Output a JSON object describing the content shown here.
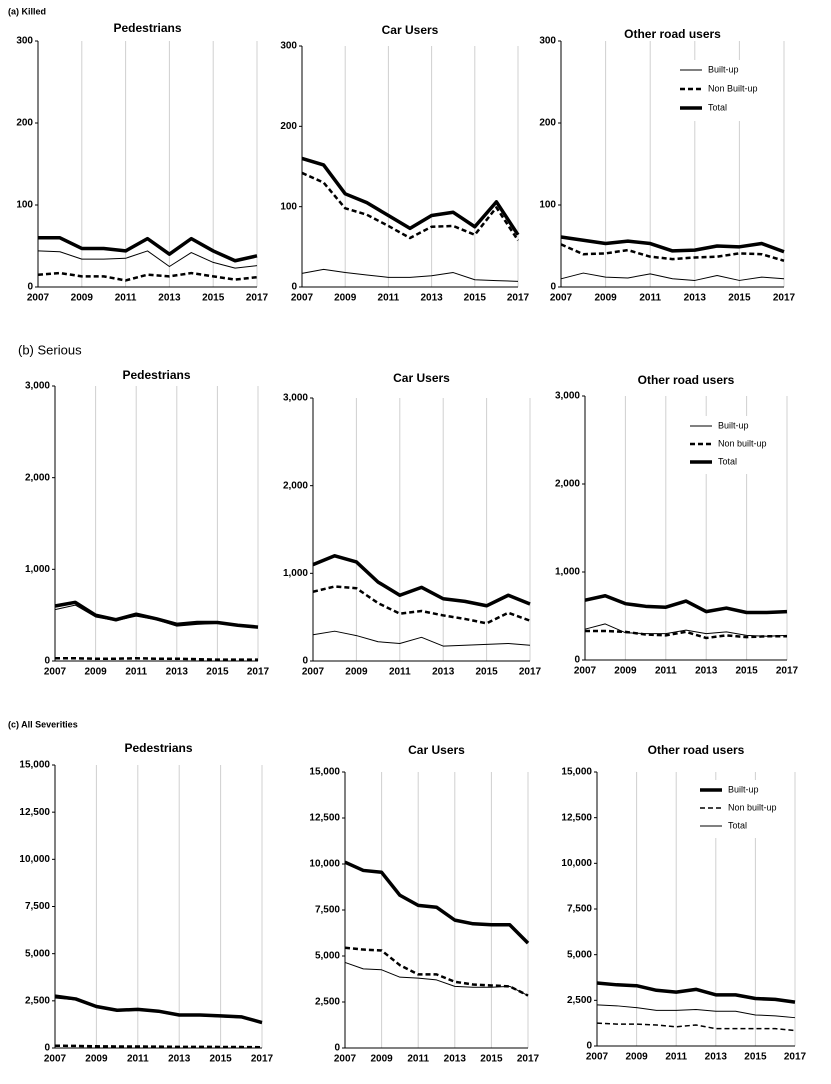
{
  "section_titles": [
    "(a) Killed",
    "(b) Serious",
    "(c) All Severities"
  ],
  "chart_data": [
    {
      "type": "line",
      "title": "Pedestrians",
      "x": [
        2007,
        2008,
        2009,
        2010,
        2011,
        2012,
        2013,
        2014,
        2015,
        2016,
        2017
      ],
      "xlim": [
        2007,
        2017
      ],
      "xticks": [
        2007,
        2009,
        2011,
        2013,
        2015,
        2017
      ],
      "ylim": [
        0,
        300
      ],
      "yticks": [
        0,
        100,
        200,
        300
      ],
      "grid": "x",
      "series": [
        {
          "color": "#000000",
          "width": 1,
          "dash": false,
          "values": [
            44,
            43,
            34,
            34,
            35,
            44,
            25,
            42,
            30,
            23,
            26
          ]
        },
        {
          "color": "#000000",
          "width": 2.5,
          "dash": true,
          "values": [
            15,
            17,
            13,
            13,
            8,
            15,
            13,
            17,
            13,
            9,
            12
          ]
        },
        {
          "color": "#000000",
          "width": 3.5,
          "dash": false,
          "values": [
            60,
            60,
            47,
            47,
            44,
            59,
            40,
            59,
            44,
            32,
            38
          ]
        }
      ]
    },
    {
      "type": "line",
      "title": "Car Users",
      "x": [
        2007,
        2008,
        2009,
        2010,
        2011,
        2012,
        2013,
        2014,
        2015,
        2016,
        2017
      ],
      "xlim": [
        2007,
        2017
      ],
      "xticks": [
        2007,
        2009,
        2011,
        2013,
        2015,
        2017
      ],
      "ylim": [
        0,
        300
      ],
      "yticks": [
        0,
        100,
        200,
        300
      ],
      "grid": "x",
      "series": [
        {
          "color": "#000000",
          "width": 1,
          "dash": false,
          "values": [
            17,
            22,
            18,
            15,
            12,
            12,
            14,
            18,
            9,
            8,
            7
          ]
        },
        {
          "color": "#000000",
          "width": 2.5,
          "dash": true,
          "values": [
            142,
            130,
            98,
            90,
            76,
            61,
            75,
            76,
            65,
            99,
            58
          ]
        },
        {
          "color": "#000000",
          "width": 3.5,
          "dash": false,
          "values": [
            160,
            152,
            116,
            105,
            89,
            73,
            89,
            93,
            75,
            106,
            65
          ]
        }
      ]
    },
    {
      "type": "line",
      "title": "Other road users",
      "x": [
        2007,
        2008,
        2009,
        2010,
        2011,
        2012,
        2013,
        2014,
        2015,
        2016,
        2017
      ],
      "xlim": [
        2007,
        2017
      ],
      "xticks": [
        2007,
        2009,
        2011,
        2013,
        2015,
        2017
      ],
      "ylim": [
        0,
        300
      ],
      "yticks": [
        0,
        100,
        200,
        300
      ],
      "grid": "x",
      "legend": "upper right",
      "series": [
        {
          "name": "Built-up",
          "color": "#000000",
          "width": 1,
          "dash": false,
          "values": [
            10,
            17,
            12,
            11,
            16,
            10,
            8,
            14,
            8,
            12,
            10
          ]
        },
        {
          "name": "Non Built-up",
          "color": "#000000",
          "width": 2.5,
          "dash": true,
          "values": [
            52,
            40,
            41,
            45,
            37,
            34,
            36,
            37,
            41,
            40,
            32
          ]
        },
        {
          "name": "Total",
          "color": "#000000",
          "width": 3.5,
          "dash": false,
          "values": [
            61,
            57,
            53,
            56,
            53,
            44,
            45,
            50,
            49,
            53,
            43
          ]
        }
      ]
    },
    {
      "type": "line",
      "title": "Pedestrians",
      "x": [
        2007,
        2008,
        2009,
        2010,
        2011,
        2012,
        2013,
        2014,
        2015,
        2016,
        2017
      ],
      "xlim": [
        2007,
        2017
      ],
      "xticks": [
        2007,
        2009,
        2011,
        2013,
        2015,
        2017
      ],
      "ylim": [
        0,
        3000
      ],
      "yticks": [
        0,
        {
          "value": 1000,
          "label": "1,000"
        },
        {
          "value": 2000,
          "label": "2,000"
        },
        {
          "value": 3000,
          "label": "3,000"
        }
      ],
      "grid": "x",
      "series": [
        {
          "color": "#000000",
          "width": 1,
          "dash": false,
          "values": [
            560,
            610,
            480,
            440,
            490,
            450,
            380,
            400,
            410,
            380,
            360
          ]
        },
        {
          "color": "#000000",
          "width": 2.5,
          "dash": true,
          "values": [
            30,
            30,
            25,
            25,
            30,
            25,
            25,
            20,
            15,
            15,
            15
          ]
        },
        {
          "color": "#000000",
          "width": 3.5,
          "dash": false,
          "values": [
            600,
            640,
            500,
            450,
            510,
            460,
            400,
            420,
            420,
            390,
            370
          ]
        }
      ]
    },
    {
      "type": "line",
      "title": "Car Users",
      "x": [
        2007,
        2008,
        2009,
        2010,
        2011,
        2012,
        2013,
        2014,
        2015,
        2016,
        2017
      ],
      "xlim": [
        2007,
        2017
      ],
      "xticks": [
        2007,
        2009,
        2011,
        2013,
        2015,
        2017
      ],
      "ylim": [
        0,
        3000
      ],
      "yticks": [
        0,
        {
          "value": 1000,
          "label": "1,000"
        },
        {
          "value": 2000,
          "label": "2,000"
        },
        {
          "value": 3000,
          "label": "3,000"
        }
      ],
      "grid": "x",
      "series": [
        {
          "color": "#000000",
          "width": 1,
          "dash": false,
          "values": [
            300,
            340,
            290,
            220,
            200,
            270,
            170,
            180,
            190,
            200,
            180
          ]
        },
        {
          "color": "#000000",
          "width": 2.5,
          "dash": true,
          "values": [
            790,
            850,
            830,
            660,
            540,
            570,
            520,
            480,
            430,
            550,
            460
          ]
        },
        {
          "color": "#000000",
          "width": 3.5,
          "dash": false,
          "values": [
            1100,
            1200,
            1130,
            900,
            750,
            840,
            710,
            680,
            630,
            750,
            650
          ]
        }
      ]
    },
    {
      "type": "line",
      "title": "Other road users",
      "x": [
        2007,
        2008,
        2009,
        2010,
        2011,
        2012,
        2013,
        2014,
        2015,
        2016,
        2017
      ],
      "xlim": [
        2007,
        2017
      ],
      "xticks": [
        2007,
        2009,
        2011,
        2013,
        2015,
        2017
      ],
      "ylim": [
        0,
        3000
      ],
      "yticks": [
        0,
        {
          "value": 1000,
          "label": "1,000"
        },
        {
          "value": 2000,
          "label": "2,000"
        },
        {
          "value": 3000,
          "label": "3,000"
        }
      ],
      "grid": "x",
      "legend": "upper right",
      "series": [
        {
          "name": "Built-up",
          "color": "#000000",
          "width": 1,
          "dash": false,
          "values": [
            350,
            410,
            310,
            300,
            300,
            340,
            300,
            320,
            280,
            270,
            280
          ]
        },
        {
          "name": "Non built-up",
          "color": "#000000",
          "width": 2.5,
          "dash": true,
          "values": [
            330,
            330,
            320,
            290,
            280,
            320,
            250,
            280,
            260,
            270,
            270
          ]
        },
        {
          "name": "Total",
          "color": "#000000",
          "width": 3.5,
          "dash": false,
          "values": [
            680,
            730,
            640,
            610,
            600,
            670,
            550,
            590,
            540,
            540,
            550
          ]
        }
      ]
    },
    {
      "type": "line",
      "title": "Pedestrians",
      "x": [
        2007,
        2008,
        2009,
        2010,
        2011,
        2012,
        2013,
        2014,
        2015,
        2016,
        2017
      ],
      "xlim": [
        2007,
        2017
      ],
      "xticks": [
        2007,
        2009,
        2011,
        2013,
        2015,
        2017
      ],
      "ylim": [
        0,
        15000
      ],
      "yticks": [
        0,
        {
          "value": 2500,
          "label": "2,500"
        },
        {
          "value": 5000,
          "label": "5,000"
        },
        {
          "value": 7500,
          "label": "7,500"
        },
        {
          "value": 10000,
          "label": "10,000"
        },
        {
          "value": 12500,
          "label": "12,500"
        },
        {
          "value": 15000,
          "label": "15,000"
        }
      ],
      "grid": "x",
      "series": [
        {
          "color": "#000000",
          "width": 1,
          "dash": false,
          "values": [
            2650,
            2550,
            2150,
            1950,
            2000,
            1900,
            1700,
            1700,
            1650,
            1600,
            1320
          ]
        },
        {
          "color": "#000000",
          "width": 2.5,
          "dash": true,
          "values": [
            120,
            110,
            90,
            80,
            80,
            70,
            60,
            60,
            55,
            50,
            40
          ]
        },
        {
          "color": "#000000",
          "width": 3.5,
          "dash": false,
          "values": [
            2750,
            2600,
            2200,
            2000,
            2050,
            1950,
            1750,
            1750,
            1700,
            1650,
            1350
          ]
        }
      ]
    },
    {
      "type": "line",
      "title": "Car Users",
      "x": [
        2007,
        2008,
        2009,
        2010,
        2011,
        2012,
        2013,
        2014,
        2015,
        2016,
        2017
      ],
      "xlim": [
        2007,
        2017
      ],
      "xticks": [
        2007,
        2009,
        2011,
        2013,
        2015,
        2017
      ],
      "ylim": [
        0,
        15000
      ],
      "yticks": [
        0,
        {
          "value": 2500,
          "label": "2,500"
        },
        {
          "value": 5000,
          "label": "5,000"
        },
        {
          "value": 7500,
          "label": "7,500"
        },
        {
          "value": 10000,
          "label": "10,000"
        },
        {
          "value": 12500,
          "label": "12,500"
        },
        {
          "value": 15000,
          "label": "15,000"
        }
      ],
      "grid": "x",
      "series": [
        {
          "color": "#000000",
          "width": 1,
          "dash": false,
          "values": [
            4650,
            4300,
            4250,
            3850,
            3800,
            3700,
            3350,
            3300,
            3300,
            3350,
            2850
          ]
        },
        {
          "color": "#000000",
          "width": 2.5,
          "dash": true,
          "values": [
            5450,
            5350,
            5300,
            4500,
            4000,
            4000,
            3600,
            3450,
            3400,
            3350,
            2850
          ]
        },
        {
          "color": "#000000",
          "width": 3.5,
          "dash": false,
          "values": [
            10100,
            9650,
            9550,
            8300,
            7750,
            7650,
            6950,
            6750,
            6700,
            6700,
            5700
          ]
        }
      ]
    },
    {
      "type": "line",
      "title": "Other road users",
      "x": [
        2007,
        2008,
        2009,
        2010,
        2011,
        2012,
        2013,
        2014,
        2015,
        2016,
        2017
      ],
      "xlim": [
        2007,
        2017
      ],
      "xticks": [
        2007,
        2009,
        2011,
        2013,
        2015,
        2017
      ],
      "ylim": [
        0,
        15000
      ],
      "yticks": [
        0,
        {
          "value": 2500,
          "label": "2,500"
        },
        {
          "value": 5000,
          "label": "5,000"
        },
        {
          "value": 7500,
          "label": "7,500"
        },
        {
          "value": 10000,
          "label": "10,000"
        },
        {
          "value": 12500,
          "label": "12,500"
        },
        {
          "value": 15000,
          "label": "15,000"
        }
      ],
      "grid": "x",
      "legend": "upper right",
      "series": [
        {
          "name": "Built-up",
          "color": "#000000",
          "width": 3.5,
          "dash": false,
          "values": [
            3450,
            3350,
            3300,
            3050,
            2950,
            3100,
            2800,
            2800,
            2600,
            2550,
            2400
          ]
        },
        {
          "name": "Non built-up",
          "color": "#000000",
          "width": 1.5,
          "dash": true,
          "values": [
            1250,
            1200,
            1200,
            1150,
            1050,
            1150,
            950,
            950,
            950,
            950,
            850
          ]
        },
        {
          "name": "Total",
          "color": "#000000",
          "width": 1,
          "dash": false,
          "values": [
            2250,
            2200,
            2100,
            1950,
            1950,
            2000,
            1900,
            1900,
            1700,
            1650,
            1550
          ]
        }
      ]
    }
  ]
}
